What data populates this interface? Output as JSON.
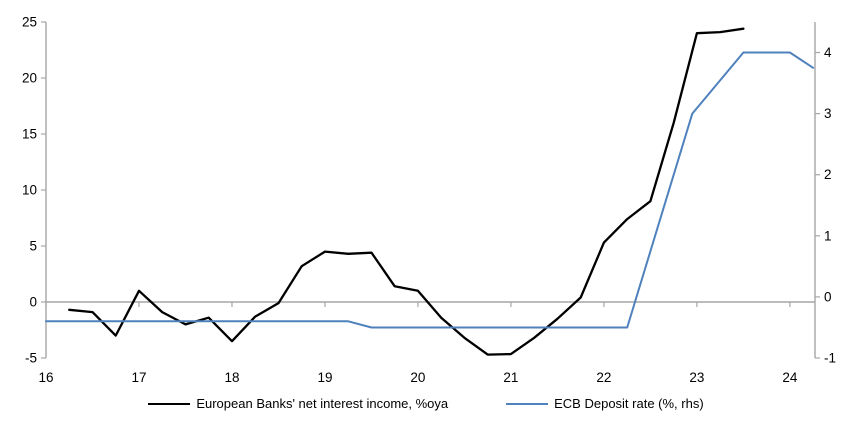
{
  "chart_data": {
    "type": "line",
    "title": "",
    "x_axis": {
      "min": 16,
      "max": 24.27,
      "ticks": [
        16,
        17,
        18,
        19,
        20,
        21,
        22,
        23,
        24
      ]
    },
    "left_axis": {
      "min": -5,
      "max": 25,
      "ticks": [
        25,
        20,
        15,
        10,
        5,
        0,
        -5
      ]
    },
    "right_axis": {
      "min": -1,
      "max": 4.5,
      "ticks": [
        4,
        3,
        2,
        1,
        0,
        -1
      ]
    },
    "grid": "zero-line-only",
    "legend_position": "bottom",
    "axis_color": "#A6A6A6",
    "series": [
      {
        "name": "European Banks' net interest income, %oya",
        "axis": "left",
        "color": "#000000",
        "points": [
          [
            16.25,
            -0.7
          ],
          [
            16.5,
            -0.9
          ],
          [
            16.75,
            -3.0
          ],
          [
            17.0,
            1.0
          ],
          [
            17.25,
            -0.9
          ],
          [
            17.5,
            -2.0
          ],
          [
            17.75,
            -1.4
          ],
          [
            18.0,
            -3.5
          ],
          [
            18.25,
            -1.3
          ],
          [
            18.5,
            -0.1
          ],
          [
            18.75,
            3.2
          ],
          [
            19.0,
            4.5
          ],
          [
            19.25,
            4.3
          ],
          [
            19.5,
            4.4
          ],
          [
            19.75,
            1.4
          ],
          [
            20.0,
            1.0
          ],
          [
            20.25,
            -1.4
          ],
          [
            20.5,
            -3.2
          ],
          [
            20.75,
            -4.7
          ],
          [
            21.0,
            -4.65
          ],
          [
            21.25,
            -3.2
          ],
          [
            21.5,
            -1.5
          ],
          [
            21.75,
            0.4
          ],
          [
            22.0,
            5.3
          ],
          [
            22.25,
            7.4
          ],
          [
            22.5,
            9.0
          ],
          [
            22.75,
            16.0
          ],
          [
            23.0,
            24.0
          ],
          [
            23.25,
            24.1
          ],
          [
            23.5,
            24.4
          ]
        ]
      },
      {
        "name": "ECB Deposit rate (%, rhs)",
        "axis": "right",
        "color": "#4F81BD",
        "points": [
          [
            16.0,
            -0.4
          ],
          [
            19.25,
            -0.4
          ],
          [
            19.5,
            -0.5
          ],
          [
            22.25,
            -0.5
          ],
          [
            22.95,
            3.0
          ],
          [
            23.5,
            4.0
          ],
          [
            24.0,
            4.0
          ],
          [
            24.25,
            3.75
          ]
        ]
      }
    ]
  }
}
